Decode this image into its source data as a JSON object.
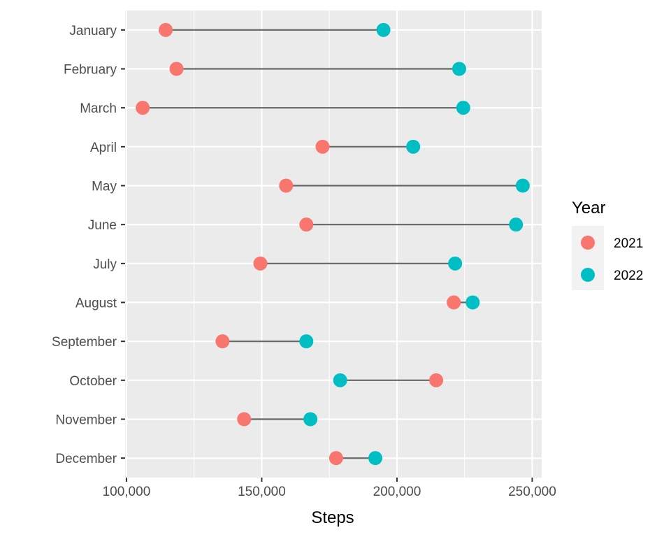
{
  "chart_data": {
    "type": "dumbbell",
    "xlabel": "Steps",
    "ylabel": "",
    "title": "",
    "xlim": [
      99500,
      253500
    ],
    "x_ticks": [
      100000,
      150000,
      200000,
      250000
    ],
    "x_tick_labels": [
      "100,000",
      "150,000",
      "200,000",
      "250,000"
    ],
    "categories": [
      "January",
      "February",
      "March",
      "April",
      "May",
      "June",
      "July",
      "August",
      "September",
      "October",
      "November",
      "December"
    ],
    "series": [
      {
        "name": "2021",
        "color": "#F8766D",
        "values": [
          114500,
          118500,
          106000,
          172500,
          159000,
          166500,
          149500,
          221000,
          135500,
          214500,
          143500,
          177500
        ]
      },
      {
        "name": "2022",
        "color": "#00BFC4",
        "values": [
          195000,
          223000,
          224500,
          206000,
          246500,
          244000,
          221500,
          228000,
          166500,
          179000,
          168000,
          192000
        ]
      }
    ],
    "connector_color": "#666666",
    "panel_background": "#EBEBEB",
    "grid": true,
    "legend": {
      "title": "Year",
      "placement": "right",
      "entries": [
        "2021",
        "2022"
      ]
    }
  }
}
